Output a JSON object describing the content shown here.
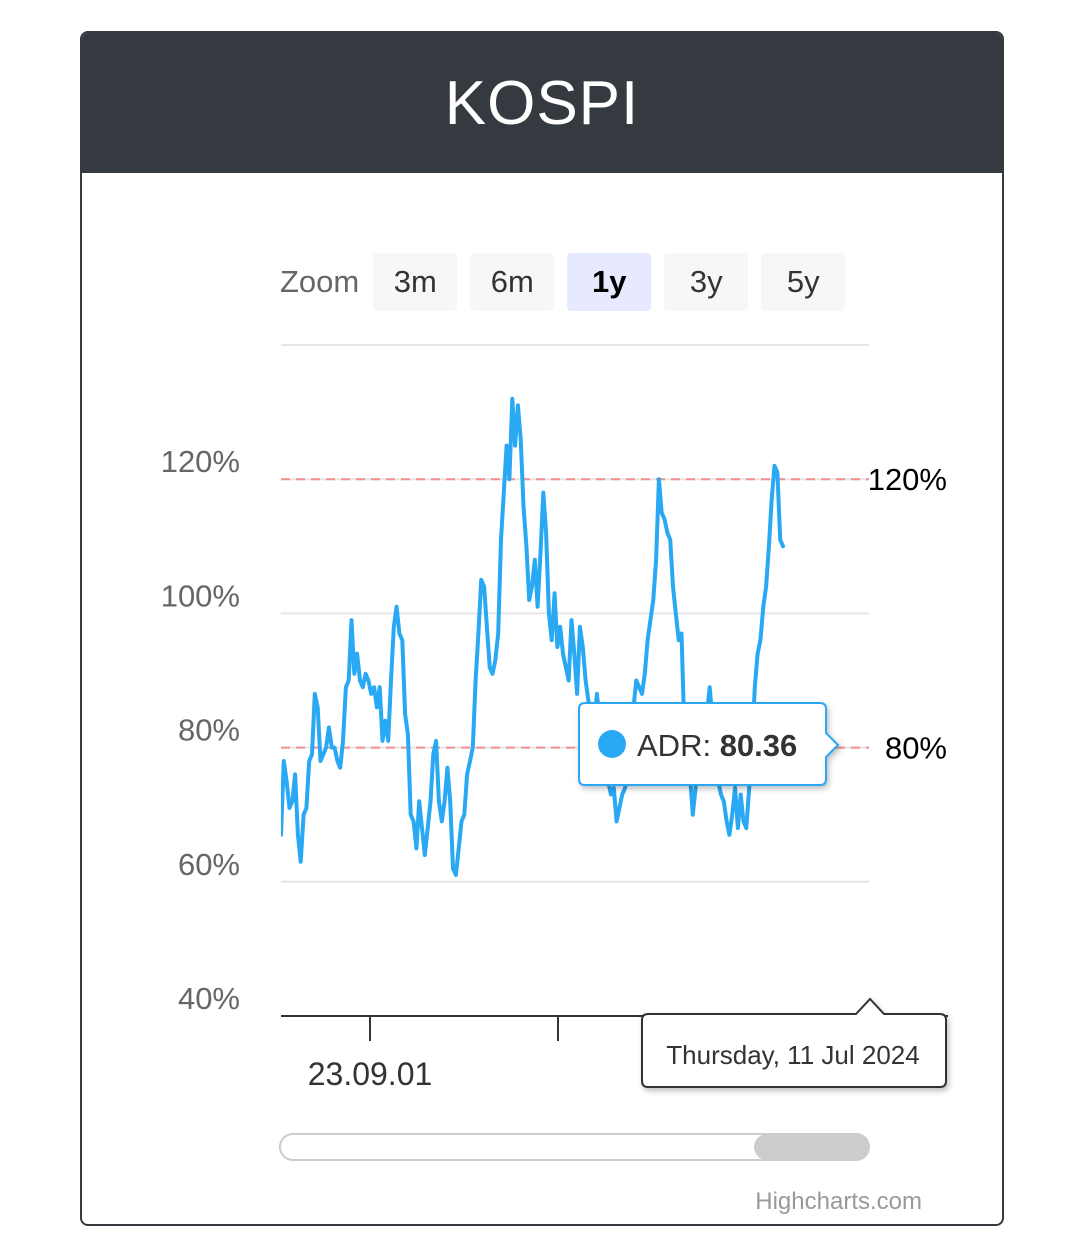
{
  "header": {
    "title": "KOSPI"
  },
  "zoom": {
    "label": "Zoom",
    "buttons": [
      {
        "label": "3m",
        "active": false
      },
      {
        "label": "6m",
        "active": false
      },
      {
        "label": "1y",
        "active": true
      },
      {
        "label": "3y",
        "active": false
      },
      {
        "label": "5y",
        "active": false
      }
    ]
  },
  "tooltip": {
    "series": "ADR",
    "value": "80.36",
    "date": "Thursday, 11 Jul 2024"
  },
  "credits": "Highcharts.com",
  "colors": {
    "header_bg": "#343a40",
    "line": "#29a8f4",
    "plotline": "#f28f8f",
    "active_zoom": "#e6e9ff"
  },
  "chart_data": {
    "type": "line",
    "ylim": [
      40,
      140
    ],
    "yticks": [
      40,
      60,
      80,
      100,
      120
    ],
    "ytick_labels": [
      "40%",
      "60%",
      "80%",
      "100%",
      "120%"
    ],
    "xtick_labels": [
      "23.09.01"
    ],
    "plot_lines": [
      {
        "value": 120,
        "label": "120%"
      },
      {
        "value": 80,
        "label": "80%"
      }
    ],
    "series": [
      {
        "name": "ADR",
        "values": [
          67,
          78,
          75,
          71,
          72,
          76,
          67,
          63,
          70,
          71,
          78,
          79,
          88,
          86,
          78,
          79,
          80,
          83,
          80,
          80,
          78,
          77,
          81,
          89,
          90,
          99,
          91,
          94,
          90,
          89,
          91,
          90,
          88,
          89,
          86,
          89,
          81,
          84,
          81,
          90,
          98,
          101,
          97,
          96,
          85,
          82,
          70,
          69,
          65,
          72,
          68,
          64,
          68,
          72,
          79,
          81,
          72,
          69,
          72,
          77,
          72,
          62,
          61,
          65,
          69,
          70,
          76,
          78,
          80,
          90,
          97,
          105,
          104,
          98,
          92,
          91,
          93,
          97,
          111,
          118,
          125,
          120,
          132,
          125,
          131,
          126,
          116,
          110,
          102,
          104,
          108,
          101,
          109,
          118,
          112,
          100,
          96,
          103,
          95,
          98,
          94,
          92,
          90,
          99,
          94,
          88,
          98,
          95,
          90,
          87,
          84,
          83,
          88,
          84,
          82,
          76,
          75,
          73,
          74,
          69,
          71,
          73,
          74,
          77,
          81,
          86,
          90,
          89,
          88,
          91,
          96,
          99,
          102,
          108,
          120,
          115,
          114,
          112,
          111,
          104,
          100,
          96,
          97,
          83,
          79,
          76,
          70,
          74,
          79,
          82,
          83,
          85,
          89,
          84,
          81,
          75,
          73,
          72,
          69,
          67,
          70,
          74,
          68,
          73,
          69,
          68,
          74,
          80,
          89,
          94,
          96,
          101,
          104,
          110,
          117,
          122,
          121,
          111,
          110
        ]
      }
    ]
  }
}
